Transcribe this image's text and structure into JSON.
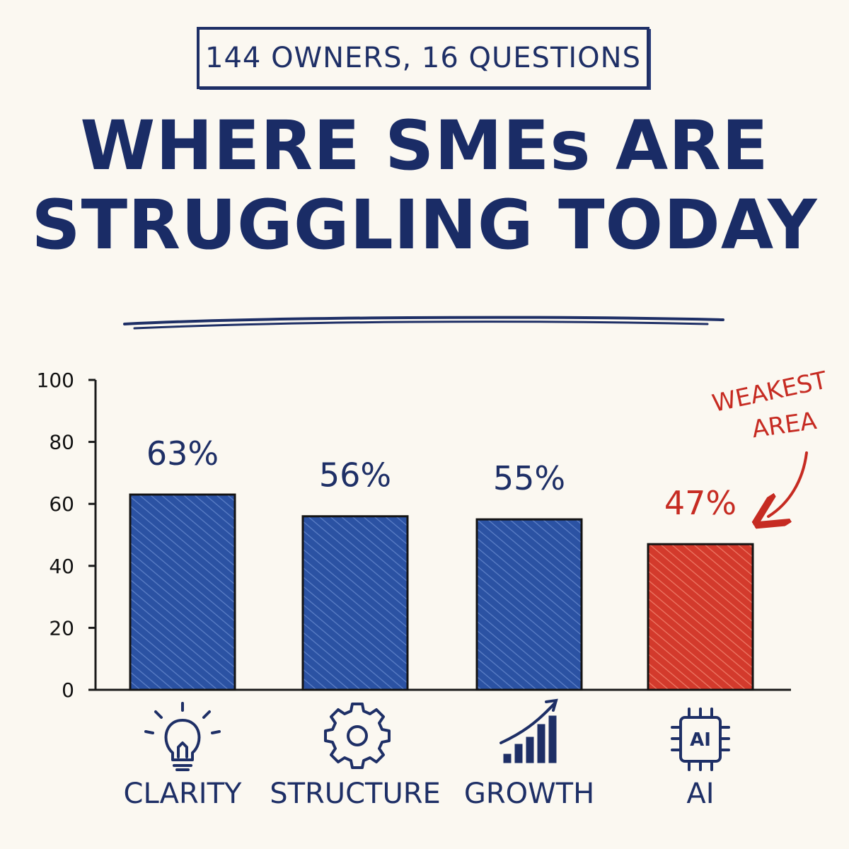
{
  "header": {
    "badge": "144 OWNERS, 16 QUESTIONS",
    "title_line1": "WHERE SMEs ARE",
    "title_line2": "STRUGGLING TODAY"
  },
  "chart_data": {
    "type": "bar",
    "title": "WHERE SMEs ARE STRUGGLING TODAY",
    "categories": [
      "CLARITY",
      "STRUCTURE",
      "GROWTH",
      "AI"
    ],
    "values": [
      63,
      56,
      55,
      47
    ],
    "value_labels": [
      "63%",
      "56%",
      "55%",
      "47%"
    ],
    "category_icons": [
      "lightbulb-icon",
      "gear-icon",
      "growth-chart-icon",
      "ai-chip-icon"
    ],
    "ylim": [
      0,
      100
    ],
    "yticks": [
      0,
      20,
      40,
      60,
      80,
      100
    ],
    "grid": false,
    "highlight_index": 3,
    "annotation": {
      "lines": [
        "WEAKEST",
        "AREA"
      ],
      "target": "AI"
    },
    "colors": {
      "bar": "#2b52a3",
      "highlight": "#d33a2c",
      "axis": "#1a1a1a",
      "text": "#1e2f66"
    }
  }
}
